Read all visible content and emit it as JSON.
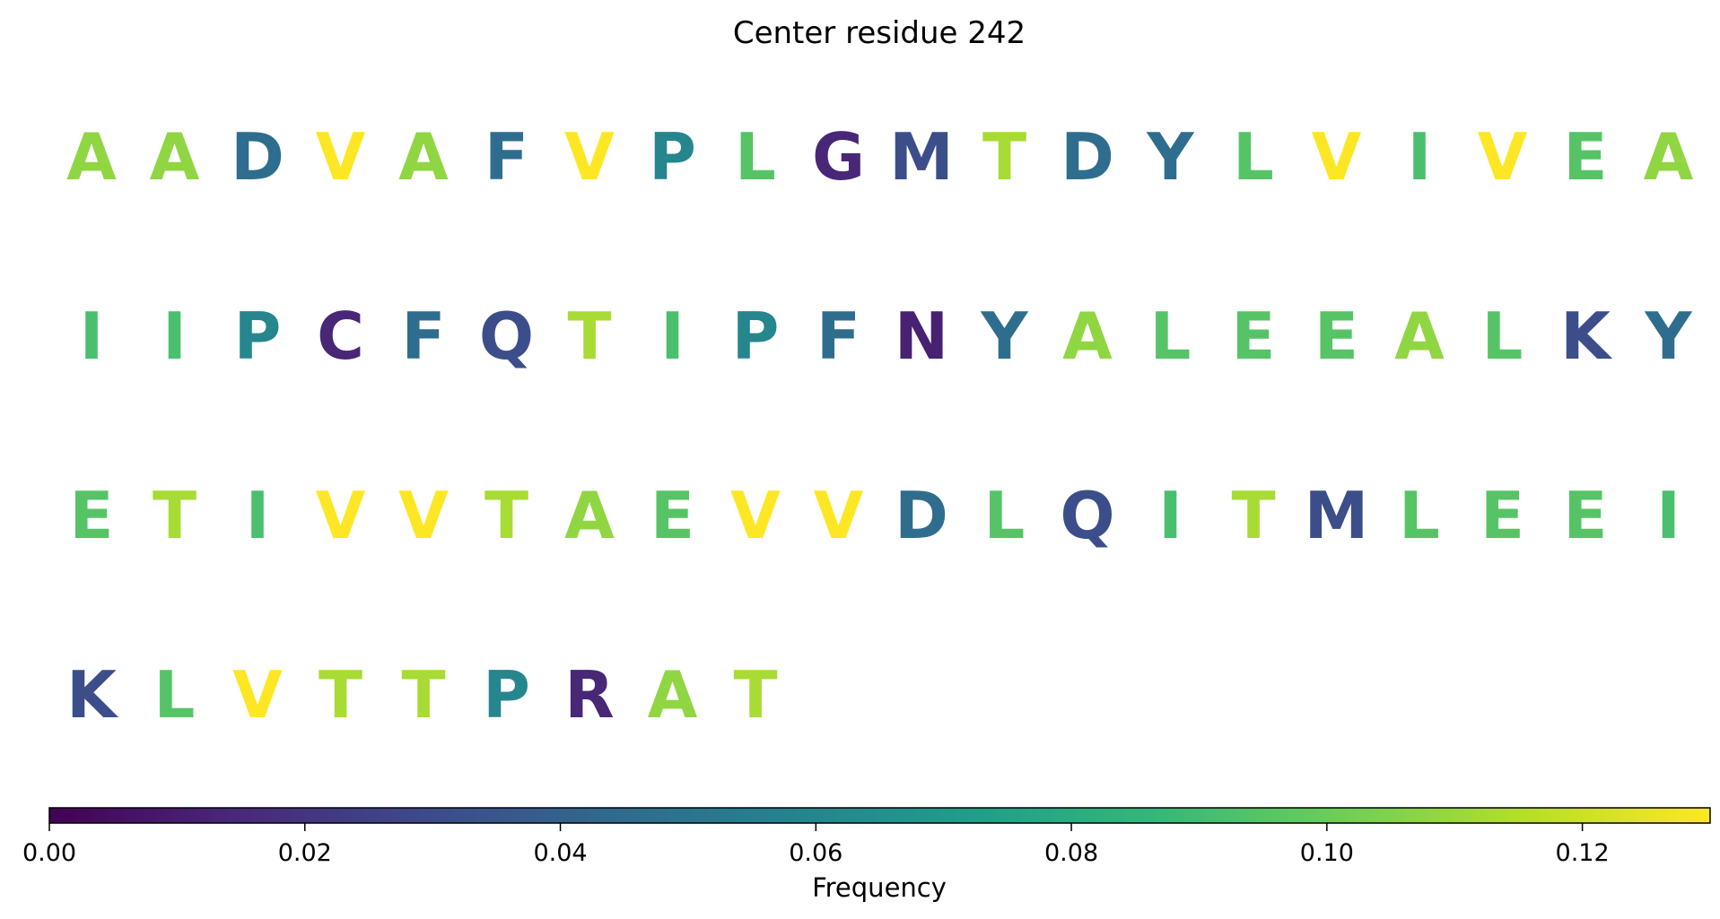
{
  "chart_data": {
    "type": "table",
    "title": "Center residue 242",
    "rows": [
      [
        {
          "letter": "A",
          "frequency": 0.108
        },
        {
          "letter": "A",
          "frequency": 0.108
        },
        {
          "letter": "D",
          "frequency": 0.046
        },
        {
          "letter": "V",
          "frequency": 0.13
        },
        {
          "letter": "A",
          "frequency": 0.108
        },
        {
          "letter": "F",
          "frequency": 0.046
        },
        {
          "letter": "V",
          "frequency": 0.13
        },
        {
          "letter": "P",
          "frequency": 0.06
        },
        {
          "letter": "L",
          "frequency": 0.095
        },
        {
          "letter": "G",
          "frequency": 0.014
        },
        {
          "letter": "M",
          "frequency": 0.031
        },
        {
          "letter": "T",
          "frequency": 0.113
        },
        {
          "letter": "D",
          "frequency": 0.046
        },
        {
          "letter": "Y",
          "frequency": 0.046
        },
        {
          "letter": "L",
          "frequency": 0.095
        },
        {
          "letter": "V",
          "frequency": 0.13
        },
        {
          "letter": "I",
          "frequency": 0.092
        },
        {
          "letter": "V",
          "frequency": 0.13
        },
        {
          "letter": "E",
          "frequency": 0.095
        },
        {
          "letter": "A",
          "frequency": 0.108
        }
      ],
      [
        {
          "letter": "I",
          "frequency": 0.092
        },
        {
          "letter": "I",
          "frequency": 0.092
        },
        {
          "letter": "P",
          "frequency": 0.06
        },
        {
          "letter": "C",
          "frequency": 0.014
        },
        {
          "letter": "F",
          "frequency": 0.046
        },
        {
          "letter": "Q",
          "frequency": 0.031
        },
        {
          "letter": "T",
          "frequency": 0.113
        },
        {
          "letter": "I",
          "frequency": 0.092
        },
        {
          "letter": "P",
          "frequency": 0.06
        },
        {
          "letter": "F",
          "frequency": 0.046
        },
        {
          "letter": "N",
          "frequency": 0.012
        },
        {
          "letter": "Y",
          "frequency": 0.046
        },
        {
          "letter": "A",
          "frequency": 0.108
        },
        {
          "letter": "L",
          "frequency": 0.095
        },
        {
          "letter": "E",
          "frequency": 0.095
        },
        {
          "letter": "E",
          "frequency": 0.095
        },
        {
          "letter": "A",
          "frequency": 0.108
        },
        {
          "letter": "L",
          "frequency": 0.095
        },
        {
          "letter": "K",
          "frequency": 0.031
        },
        {
          "letter": "Y",
          "frequency": 0.046
        }
      ],
      [
        {
          "letter": "E",
          "frequency": 0.095
        },
        {
          "letter": "T",
          "frequency": 0.113
        },
        {
          "letter": "I",
          "frequency": 0.092
        },
        {
          "letter": "V",
          "frequency": 0.13
        },
        {
          "letter": "V",
          "frequency": 0.13
        },
        {
          "letter": "T",
          "frequency": 0.113
        },
        {
          "letter": "A",
          "frequency": 0.108
        },
        {
          "letter": "E",
          "frequency": 0.095
        },
        {
          "letter": "V",
          "frequency": 0.13
        },
        {
          "letter": "V",
          "frequency": 0.13
        },
        {
          "letter": "D",
          "frequency": 0.046
        },
        {
          "letter": "L",
          "frequency": 0.095
        },
        {
          "letter": "Q",
          "frequency": 0.031
        },
        {
          "letter": "I",
          "frequency": 0.092
        },
        {
          "letter": "T",
          "frequency": 0.113
        },
        {
          "letter": "M",
          "frequency": 0.031
        },
        {
          "letter": "L",
          "frequency": 0.095
        },
        {
          "letter": "E",
          "frequency": 0.095
        },
        {
          "letter": "E",
          "frequency": 0.095
        },
        {
          "letter": "I",
          "frequency": 0.092
        }
      ],
      [
        {
          "letter": "K",
          "frequency": 0.031
        },
        {
          "letter": "L",
          "frequency": 0.095
        },
        {
          "letter": "V",
          "frequency": 0.13
        },
        {
          "letter": "T",
          "frequency": 0.113
        },
        {
          "letter": "T",
          "frequency": 0.113
        },
        {
          "letter": "P",
          "frequency": 0.06
        },
        {
          "letter": "R",
          "frequency": 0.014
        },
        {
          "letter": "A",
          "frequency": 0.108
        },
        {
          "letter": "T",
          "frequency": 0.113
        }
      ]
    ],
    "colormap": "viridis",
    "colorbar": {
      "label": "Frequency",
      "range": [
        0,
        0.13
      ],
      "ticks": [
        0.0,
        0.02,
        0.04,
        0.06,
        0.08,
        0.1,
        0.12
      ],
      "tick_labels": [
        "0.00",
        "0.02",
        "0.04",
        "0.06",
        "0.08",
        "0.10",
        "0.12"
      ],
      "orientation": "horizontal",
      "placement": "bottom"
    },
    "grid": false
  }
}
